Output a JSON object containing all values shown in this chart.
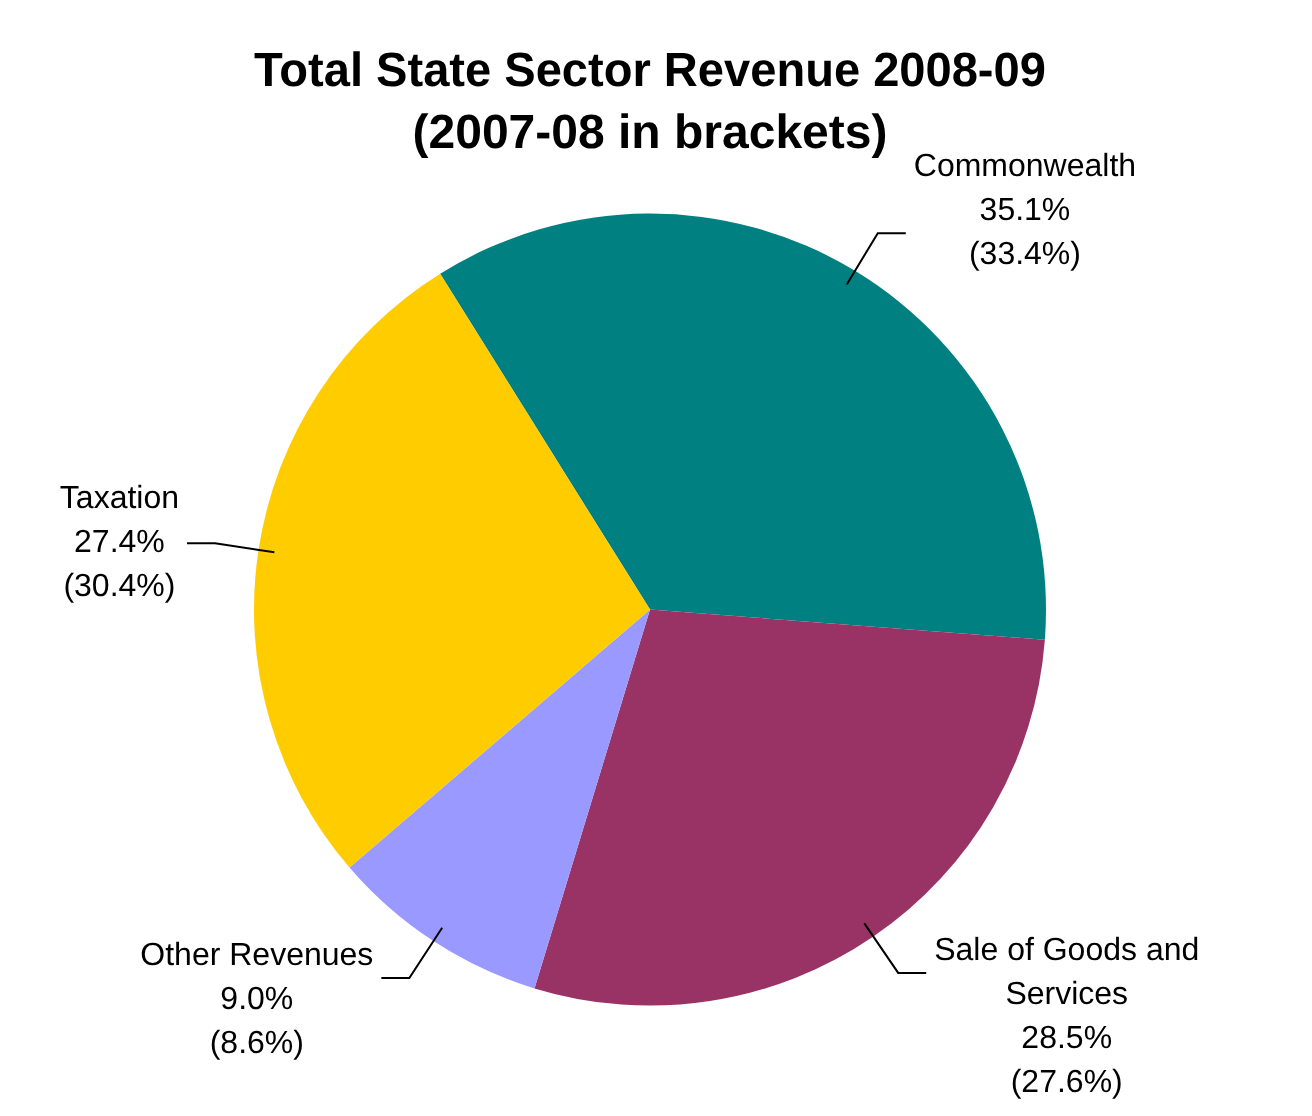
{
  "chart_data": {
    "type": "pie",
    "title": "Total State Sector Revenue 2008-09",
    "subtitle": "(2007-08 in brackets)",
    "categories": [
      "Commonwealth",
      "Sale of Goods and Services",
      "Other Revenues",
      "Taxation"
    ],
    "values": [
      35.1,
      28.5,
      9.0,
      27.4
    ],
    "colors": [
      "#008080",
      "#993366",
      "#9999ff",
      "#ffcc00"
    ],
    "value_labels": [
      "35.1%\n(33.4%)",
      "28.5%\n(27.6%)",
      "9.0%\n(8.6%)",
      "27.4%\n(30.4%)"
    ],
    "legend": false
  }
}
